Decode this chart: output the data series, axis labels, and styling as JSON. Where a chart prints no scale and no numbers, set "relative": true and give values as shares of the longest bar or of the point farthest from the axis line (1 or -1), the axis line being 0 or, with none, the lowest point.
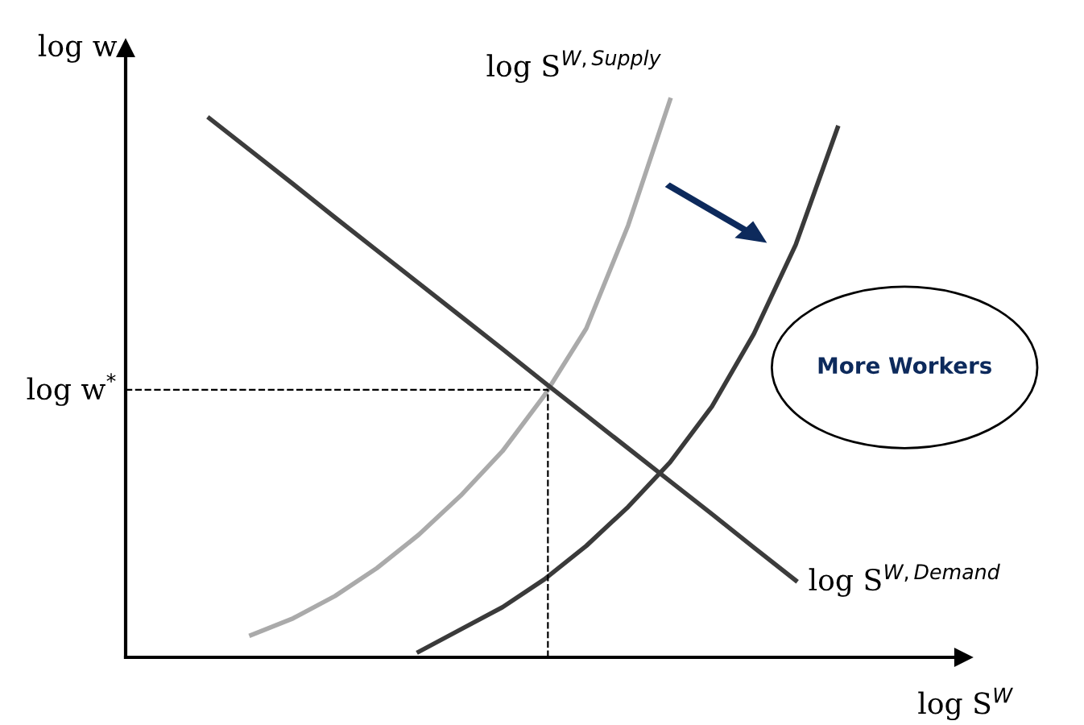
{
  "chart_data": {
    "type": "line",
    "relative": true,
    "xlabel": "log S$^{W}$",
    "ylabel": "log w",
    "marker": "none",
    "line_style": "solid",
    "legend": false,
    "categories": [
      null,
      null,
      null,
      null,
      null,
      null,
      null,
      null,
      null,
      null,
      null,
      null,
      null,
      null,
      null,
      null,
      null,
      null,
      null,
      null,
      null
    ],
    "series": [
      {
        "name": "log S$^{W,Supply}$",
        "color": "#aaaaaa",
        "values": [
          null,
          null,
          null,
          0.04,
          0.07,
          0.11,
          0.16,
          0.22,
          0.29,
          0.37,
          0.47,
          0.59,
          0.775,
          1.0,
          null,
          null,
          null,
          null,
          null,
          null,
          null
        ]
      },
      {
        "color": "#3a3a3a",
        "values": [
          null,
          null,
          null,
          null,
          null,
          null,
          null,
          0.01,
          0.05,
          0.09,
          0.14,
          0.2,
          0.27,
          0.35,
          0.45,
          0.58,
          0.74,
          0.95,
          null,
          null,
          null
        ]
      },
      {
        "name": "log S$^{W,Demand}$",
        "color": "#3c3c3c",
        "values": [
          null,
          null,
          0.967,
          0.908,
          0.849,
          0.789,
          0.73,
          0.671,
          0.612,
          0.553,
          0.493,
          0.434,
          0.375,
          0.316,
          0.257,
          0.197,
          0.138,
          null,
          null,
          null,
          null
        ]
      }
    ],
    "ref_lines": [
      {
        "axis": "y",
        "value": 0.48,
        "label": "log w$^{*}$",
        "color": "#000000",
        "line_style": "dashed"
      }
    ],
    "annotations": [
      "More Workers"
    ]
  }
}
